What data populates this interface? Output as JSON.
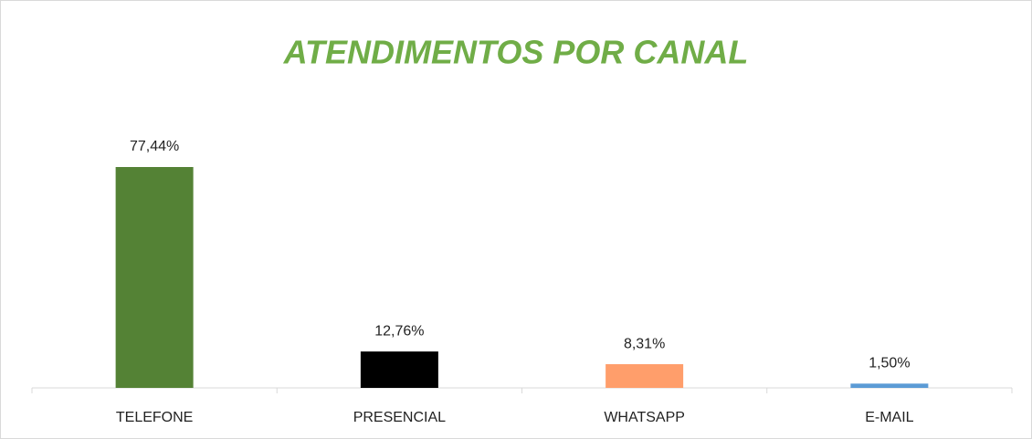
{
  "chart_data": {
    "type": "bar",
    "title": "ATENDIMENTOS POR CANAL",
    "categories": [
      "TELEFONE",
      "PRESENCIAL",
      "WHATSAPP",
      "E-MAIL"
    ],
    "values": [
      77.44,
      12.76,
      8.31,
      1.5
    ],
    "value_labels": [
      "77,44%",
      "12,76%",
      "8,31%",
      "1,50%"
    ],
    "colors": [
      "#548235",
      "#000000",
      "#ff9e6b",
      "#5b9bd5"
    ]
  }
}
